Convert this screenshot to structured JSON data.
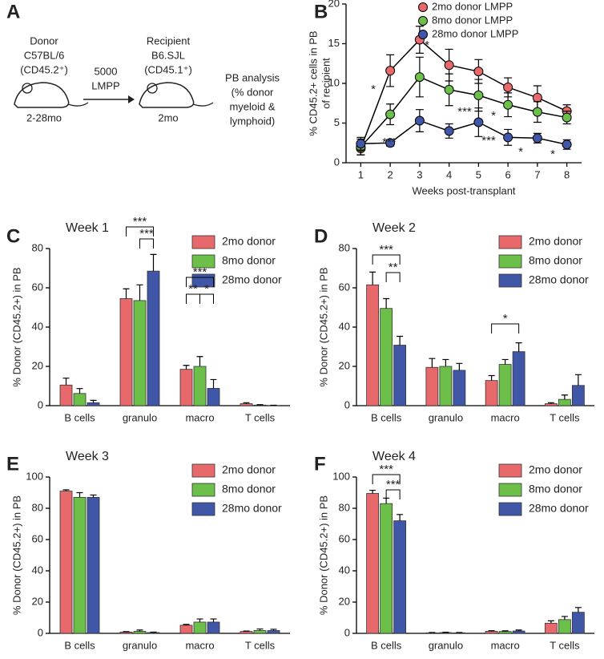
{
  "diagram": {
    "panel": "A",
    "donor": [
      "Donor",
      "C57BL/6",
      "(CD45.2⁺)"
    ],
    "donor_age": "2-28mo",
    "transfer": [
      "5000",
      "LMPP"
    ],
    "recipient": [
      "Recipient",
      "B6.SJL",
      "(CD45.1⁺)"
    ],
    "recipient_age": "2mo",
    "analysis": [
      "PB analysis",
      "(% donor",
      "myeloid &",
      "lymphoid)"
    ]
  },
  "chart_data": [
    {
      "type": "line",
      "panel": "B",
      "xlabel": "Weeks post-transplant",
      "ylabel": [
        "% CD45.2+ cells in PB",
        "of recipient"
      ],
      "x": [
        1,
        2,
        3,
        4,
        5,
        6,
        7,
        8
      ],
      "xlim": [
        0.5,
        8.5
      ],
      "xticks": [
        1,
        2,
        3,
        4,
        5,
        6,
        7,
        8
      ],
      "ylim": [
        0,
        20
      ],
      "yticks": [
        0,
        5,
        10,
        15,
        20
      ],
      "legend": "upper right",
      "series": [
        {
          "name": "2mo donor LMPP",
          "color": "#e8696b",
          "values": [
            1.8,
            11.6,
            15.5,
            12.3,
            11.5,
            9.5,
            8.2,
            6.5
          ],
          "errors": [
            0.8,
            2.0,
            1.7,
            2.0,
            1.5,
            1.2,
            1.5,
            0.8
          ]
        },
        {
          "name": "8mo donor LMPP",
          "color": "#6cc04a",
          "values": [
            2.0,
            6.1,
            10.8,
            9.2,
            8.5,
            7.3,
            6.4,
            5.7
          ],
          "errors": [
            1.0,
            1.3,
            2.5,
            2.0,
            2.0,
            1.5,
            1.3,
            0.8
          ]
        },
        {
          "name": "28mo donor LMPP",
          "color": "#3f57a6",
          "values": [
            2.4,
            2.5,
            5.3,
            4.0,
            5.1,
            3.2,
            3.1,
            2.3
          ],
          "errors": [
            0.8,
            0.4,
            1.4,
            0.9,
            1.8,
            1.0,
            0.6,
            0.6
          ]
        }
      ],
      "annotations": [
        "*",
        "*",
        "***",
        "***",
        "***",
        "*",
        "*",
        "*"
      ]
    },
    {
      "type": "bar",
      "panel": "C",
      "title": "Week 1",
      "ylabel": "% Donor (CD45.2+) in PB",
      "categories": [
        "B cells",
        "granulo",
        "macro",
        "T cells"
      ],
      "ylim": [
        0,
        80
      ],
      "yticks": [
        0,
        20,
        40,
        60,
        80
      ],
      "legend": "upper right",
      "series": [
        {
          "name": "2mo donor",
          "color": "#e8696b",
          "values": [
            10.5,
            54.5,
            18.5,
            1.0
          ],
          "errors": [
            3.5,
            5,
            2,
            0.5
          ]
        },
        {
          "name": "8mo donor",
          "color": "#6cc04a",
          "values": [
            6.2,
            53.5,
            20,
            0.3
          ],
          "errors": [
            2.5,
            8,
            5,
            0.2
          ]
        },
        {
          "name": "28mo donor",
          "color": "#3f57a6",
          "values": [
            1.5,
            68.5,
            8.8,
            0.1
          ],
          "errors": [
            1.2,
            8.5,
            4.5,
            0.1
          ]
        }
      ],
      "annotations": [
        "***",
        "***",
        "***",
        "**",
        "*"
      ]
    },
    {
      "type": "bar",
      "panel": "D",
      "title": "Week 2",
      "ylabel": "% Donor (CD45.2+) in PB",
      "categories": [
        "B cells",
        "granulo",
        "macro",
        "T cells"
      ],
      "ylim": [
        0,
        80
      ],
      "yticks": [
        0,
        20,
        40,
        60,
        80
      ],
      "legend": "upper right",
      "series": [
        {
          "name": "2mo donor",
          "color": "#e8696b",
          "values": [
            61.5,
            19.5,
            12.8,
            1.0
          ],
          "errors": [
            6.5,
            4.5,
            2.5,
            0.5
          ]
        },
        {
          "name": "8mo donor",
          "color": "#6cc04a",
          "values": [
            49.5,
            20,
            21,
            3.2
          ],
          "errors": [
            5,
            3.5,
            2.5,
            2.2
          ]
        },
        {
          "name": "28mo donor",
          "color": "#3f57a6",
          "values": [
            30.8,
            18,
            27.5,
            10.3
          ],
          "errors": [
            4.5,
            3.5,
            4.5,
            5.5
          ]
        }
      ],
      "annotations": [
        "***",
        "**",
        "*"
      ]
    },
    {
      "type": "bar",
      "panel": "E",
      "title": "Week 3",
      "ylabel": "% Donor (CD45.2+) in PB",
      "categories": [
        "B cells",
        "granulo",
        "macro",
        "T cells"
      ],
      "ylim": [
        0,
        100
      ],
      "yticks": [
        0,
        20,
        40,
        60,
        80,
        100
      ],
      "legend": "upper right",
      "series": [
        {
          "name": "2mo donor",
          "color": "#e8696b",
          "values": [
            91,
            0.8,
            5.2,
            1.2
          ],
          "errors": [
            0.8,
            0.3,
            0.5,
            0.3
          ]
        },
        {
          "name": "8mo donor",
          "color": "#6cc04a",
          "values": [
            87,
            1.3,
            7.2,
            1.8
          ],
          "errors": [
            3,
            0.8,
            2,
            1
          ]
        },
        {
          "name": "28mo donor",
          "color": "#3f57a6",
          "values": [
            87,
            0.5,
            7.2,
            1.8
          ],
          "errors": [
            1.5,
            0.3,
            2,
            0.8
          ]
        }
      ],
      "annotations": []
    },
    {
      "type": "bar",
      "panel": "F",
      "title": "Week 4",
      "ylabel": "% Donor (CD45.2+) in PB",
      "categories": [
        "B cells",
        "granulo",
        "macro",
        "T cells"
      ],
      "ylim": [
        0,
        100
      ],
      "yticks": [
        0,
        20,
        40,
        60,
        80,
        100
      ],
      "legend": "upper right",
      "series": [
        {
          "name": "2mo donor",
          "color": "#e8696b",
          "values": [
            89.5,
            0.3,
            1.3,
            6.5
          ],
          "errors": [
            2,
            0.2,
            0.4,
            1.5
          ]
        },
        {
          "name": "8mo donor",
          "color": "#6cc04a",
          "values": [
            83,
            0.5,
            1.2,
            8.8
          ],
          "errors": [
            3.5,
            0.2,
            0.4,
            2
          ]
        },
        {
          "name": "28mo donor",
          "color": "#3f57a6",
          "values": [
            72,
            0.3,
            1.5,
            13.5
          ],
          "errors": [
            4,
            0.2,
            0.6,
            3
          ]
        }
      ],
      "annotations": [
        "***",
        "***"
      ]
    }
  ]
}
